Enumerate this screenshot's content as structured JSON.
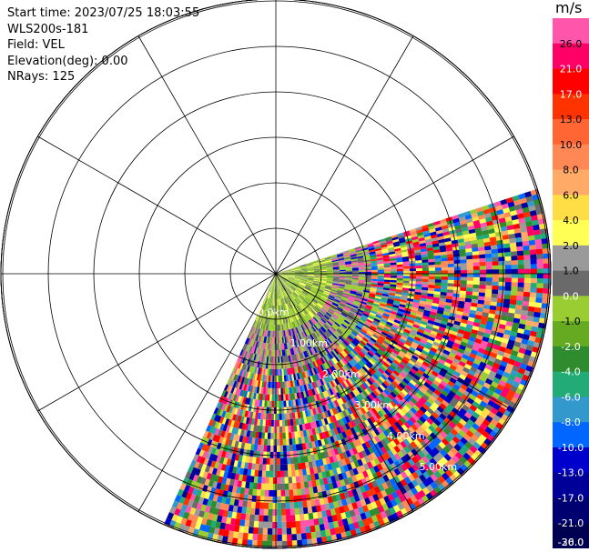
{
  "header": {
    "start_time": "Start time: 2023/07/25 18:03:55",
    "instrument": "WLS200s-181",
    "field": "Field: VEL",
    "elevation": "Elevation(deg): 0.00",
    "nrays": "NRays: 125"
  },
  "ppi": {
    "range_labels": [
      "0.0km",
      "1.00km",
      "2.00km",
      "3.00km",
      "4.00km",
      "5.00km"
    ],
    "sector_start_deg_math": 18,
    "sector_end_deg_math": -114,
    "n_range_rings": 10,
    "n_spokes": 12
  },
  "colorbar": {
    "units": "m/s",
    "tick_labels": [
      "26.0",
      "21.0",
      "17.0",
      "13.0",
      "10.0",
      "8.0",
      "6.0",
      "4.0",
      "2.0",
      "1.0",
      "0.0",
      "-1.0",
      "-2.0",
      "-4.0",
      "-6.0",
      "-8.0",
      "-10.0",
      "-13.0",
      "-17.0",
      "-21.0",
      "-26.0",
      "-30.0"
    ],
    "colors": [
      "#ff55aa",
      "#ff0066",
      "#ff0000",
      "#ff3300",
      "#ff6633",
      "#ff8855",
      "#ffaa66",
      "#ffdd44",
      "#ffff55",
      "#9a9a9a",
      "#6a6a6a",
      "#9acd32",
      "#66aa22",
      "#2e8b2e",
      "#22aa77",
      "#3399cc",
      "#0066ff",
      "#0000cc",
      "#000099",
      "#000070",
      "#000050"
    ]
  }
}
